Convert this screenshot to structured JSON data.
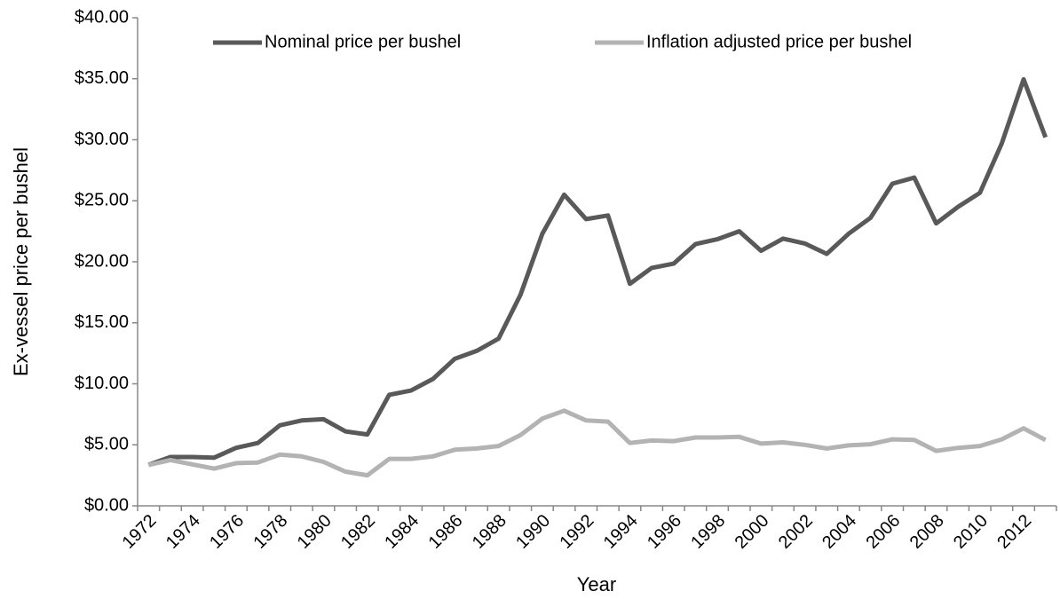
{
  "chart_data": {
    "type": "line",
    "x_label": "Year",
    "y_label": "Ex-vessel price per bushel",
    "categories": [
      "1972",
      null,
      "1974",
      null,
      "1976",
      null,
      "1978",
      null,
      "1980",
      null,
      "1982",
      null,
      "1984",
      null,
      "1986",
      null,
      "1988",
      null,
      "1990",
      null,
      "1992",
      null,
      "1994",
      null,
      "1996",
      null,
      "1998",
      null,
      "2000",
      null,
      "2002",
      null,
      "2004",
      null,
      "2006",
      null,
      "2008",
      null,
      "2010",
      null,
      "2012",
      null
    ],
    "series": [
      {
        "name": "Nominal price per bushel",
        "color": "#595959",
        "values": [
          3.35,
          4.0,
          4.0,
          3.95,
          4.75,
          5.15,
          6.6,
          7.0,
          7.1,
          6.1,
          5.85,
          9.1,
          9.45,
          10.4,
          12.05,
          12.7,
          13.7,
          17.3,
          22.3,
          25.5,
          23.5,
          23.8,
          18.2,
          19.5,
          19.85,
          21.45,
          21.85,
          22.5,
          20.9,
          21.9,
          21.5,
          20.65,
          22.3,
          23.6,
          26.4,
          26.9,
          23.15,
          24.5,
          25.65,
          29.7,
          34.95,
          30.2
        ]
      },
      {
        "name": "Inflation adjusted price per bushel",
        "color": "#b3b3b3",
        "values": [
          3.35,
          3.75,
          3.4,
          3.05,
          3.5,
          3.55,
          4.2,
          4.05,
          3.6,
          2.8,
          2.5,
          3.85,
          3.85,
          4.05,
          4.6,
          4.7,
          4.9,
          5.8,
          7.15,
          7.8,
          7.0,
          6.9,
          5.15,
          5.35,
          5.3,
          5.6,
          5.6,
          5.65,
          5.1,
          5.2,
          5.0,
          4.7,
          4.95,
          5.05,
          5.45,
          5.4,
          4.5,
          4.75,
          4.9,
          5.45,
          6.35,
          5.4
        ]
      }
    ],
    "ylim": [
      0,
      40
    ],
    "yticks": [
      {
        "value": 0,
        "label": "$0.00"
      },
      {
        "value": 5,
        "label": "$5.00"
      },
      {
        "value": 10,
        "label": "$10.00"
      },
      {
        "value": 15,
        "label": "$15.00"
      },
      {
        "value": 20,
        "label": "$20.00"
      },
      {
        "value": 25,
        "label": "$25.00"
      },
      {
        "value": 30,
        "label": "$30.00"
      },
      {
        "value": 35,
        "label": "$35.00"
      },
      {
        "value": 40,
        "label": "$40.00"
      }
    ],
    "legend": "top",
    "grid": false
  }
}
